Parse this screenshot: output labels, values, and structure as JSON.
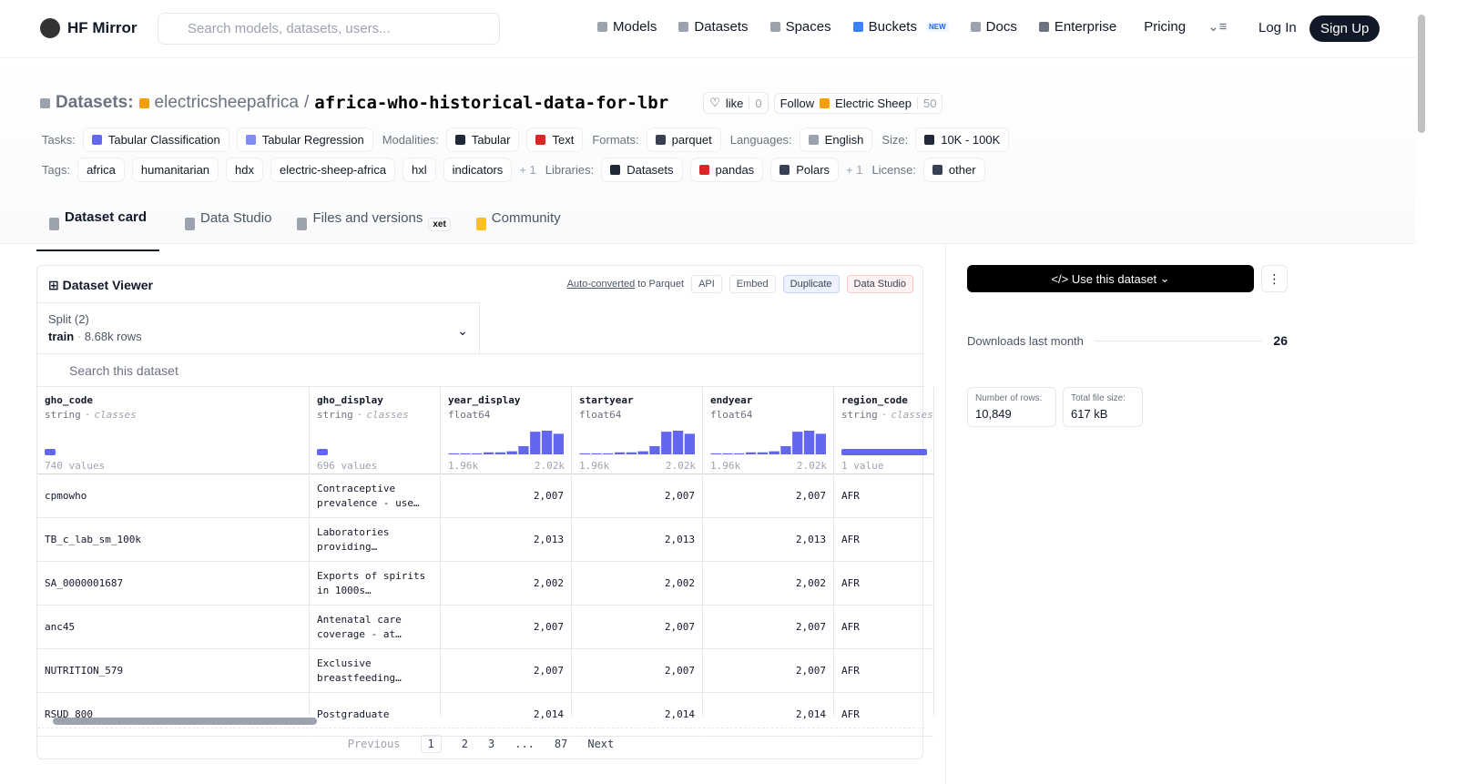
{
  "nav": {
    "brand": "HF Mirror",
    "search_placeholder": "Search models, datasets, users...",
    "links": [
      "Models",
      "Datasets",
      "Spaces",
      "Buckets",
      "Docs",
      "Enterprise",
      "Pricing"
    ],
    "buckets_badge": "NEW",
    "login": "Log In",
    "signup": "Sign Up"
  },
  "header": {
    "prefix": "Datasets:",
    "owner": "electricsheepafrica",
    "separator": "/",
    "name": "africa-who-historical-data-for-lbr",
    "like": "like",
    "like_count": 0,
    "follow": "Follow",
    "follow_org": "Electric Sheep",
    "follow_count": 50
  },
  "meta_rows": [
    [
      {
        "label": "Tasks:",
        "items": [
          "Tabular Classification",
          "Tabular Regression"
        ]
      },
      {
        "label": "Modalities:",
        "items": [
          "Tabular",
          "Text"
        ]
      },
      {
        "label": "Formats:",
        "items": [
          "parquet"
        ]
      },
      {
        "label": "Languages:",
        "items": [
          "English"
        ]
      },
      {
        "label": "Size:",
        "items": [
          "10K - 100K"
        ]
      }
    ],
    [
      {
        "label": "Tags:",
        "items": [
          "africa",
          "humanitarian",
          "hdx",
          "electric-sheep-africa",
          "hxl",
          "indicators"
        ],
        "more": "+ 1"
      },
      {
        "label": "Libraries:",
        "items": [
          "Datasets",
          "pandas",
          "Polars"
        ],
        "more": "+ 1"
      },
      {
        "label": "License:",
        "items": [
          "other"
        ]
      }
    ]
  ],
  "tabs": [
    "Dataset card",
    "Data Studio",
    "Files and versions",
    "Community"
  ],
  "xet_badge": "xet",
  "viewer": {
    "title": "Dataset Viewer",
    "auto_converted": "Auto-converted",
    "to_parquet": "to Parquet",
    "actions": [
      "API",
      "Embed",
      "Duplicate",
      "Data Studio"
    ],
    "split_label": "Split (2)",
    "split": "train",
    "split_sep": "·",
    "split_rows": "8.68k rows",
    "search_placeholder": "Search this dataset",
    "dtype_sep": "·",
    "columns": [
      {
        "name": "gho_code",
        "dtype": "string",
        "kind": "classes",
        "summary": "740 values"
      },
      {
        "name": "gho_display",
        "dtype": "string",
        "kind": "classes",
        "summary": "696 values"
      },
      {
        "name": "year_display",
        "dtype": "float64",
        "min": "1.96k",
        "max": "2.02k",
        "histogram": [
          1,
          1,
          1,
          2,
          2,
          3,
          8,
          22,
          23,
          20
        ]
      },
      {
        "name": "startyear",
        "dtype": "float64",
        "min": "1.96k",
        "max": "2.02k",
        "histogram": [
          1,
          1,
          1,
          2,
          2,
          3,
          8,
          22,
          23,
          20
        ]
      },
      {
        "name": "endyear",
        "dtype": "float64",
        "min": "1.96k",
        "max": "2.02k",
        "histogram": [
          1,
          1,
          1,
          2,
          2,
          3,
          8,
          22,
          23,
          20
        ]
      },
      {
        "name": "region_code",
        "dtype": "string",
        "kind": "classes",
        "summary": "1 value"
      }
    ],
    "rows": [
      [
        "cpmowho",
        "Contraceptive prevalence - use…",
        "2,007",
        "2,007",
        "2,007",
        "AFR"
      ],
      [
        "TB_c_lab_sm_100k",
        "Laboratories providing…",
        "2,013",
        "2,013",
        "2,013",
        "AFR"
      ],
      [
        "SA_0000001687",
        "Exports of spirits in 1000s…",
        "2,002",
        "2,002",
        "2,002",
        "AFR"
      ],
      [
        "anc45",
        "Antenatal care coverage - at…",
        "2,007",
        "2,007",
        "2,007",
        "AFR"
      ],
      [
        "NUTRITION_579",
        "Exclusive breastfeeding…",
        "2,007",
        "2,007",
        "2,007",
        "AFR"
      ],
      [
        "RSUD_800",
        "Postgraduate",
        "2,014",
        "2,014",
        "2,014",
        "AFR"
      ]
    ],
    "pagination": {
      "previous": "Previous",
      "pages": [
        "1",
        "2",
        "3",
        "...",
        "87"
      ],
      "next": "Next"
    }
  },
  "sidebar": {
    "use": "Use this dataset",
    "downloads_label": "Downloads last month",
    "downloads": 26,
    "stats": [
      {
        "label": "Number of rows:",
        "value": "10,849"
      },
      {
        "label": "Total file size:",
        "value": "617 kB"
      }
    ]
  }
}
